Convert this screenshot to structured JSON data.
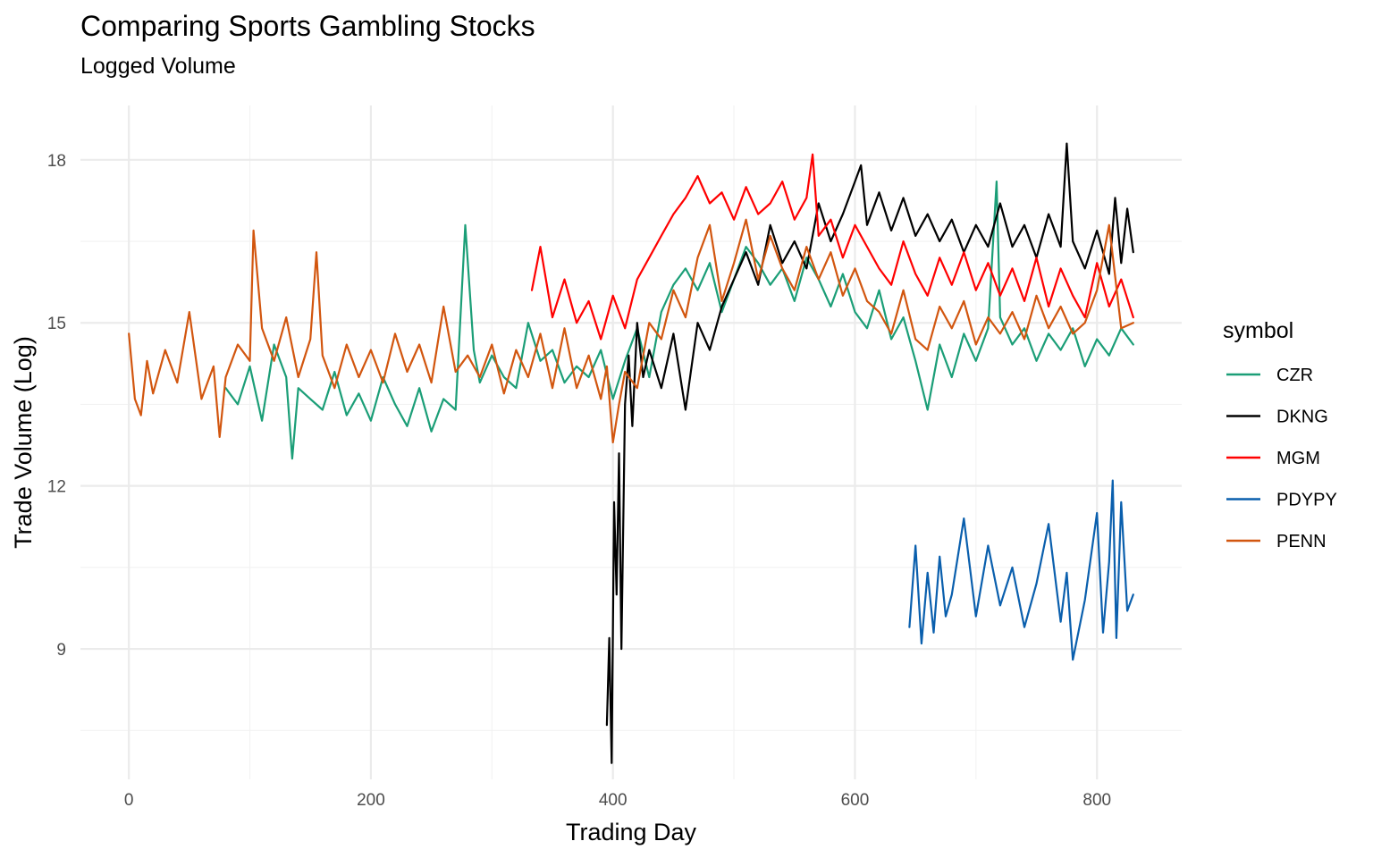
{
  "chart_data": {
    "type": "line",
    "title": "Comparing Sports Gambling Stocks",
    "subtitle": "Logged Volume",
    "xlabel": "Trading Day",
    "ylabel": "Trade Volume (Log)",
    "xlim": [
      -40,
      870
    ],
    "ylim": [
      6.6,
      19.0
    ],
    "x_ticks": [
      0,
      200,
      400,
      600,
      800
    ],
    "y_ticks": [
      9,
      12,
      15,
      18
    ],
    "grid": true,
    "legend_title": "symbol",
    "legend_position": "right",
    "series": [
      {
        "name": "CZR",
        "color": "#1b9e77",
        "x": [
          80,
          90,
          100,
          110,
          120,
          130,
          135,
          140,
          150,
          160,
          170,
          180,
          190,
          200,
          210,
          220,
          230,
          240,
          250,
          260,
          270,
          278,
          285,
          290,
          300,
          310,
          320,
          330,
          340,
          350,
          360,
          370,
          380,
          390,
          400,
          410,
          420,
          430,
          440,
          450,
          460,
          470,
          480,
          490,
          500,
          510,
          520,
          530,
          540,
          550,
          560,
          570,
          580,
          590,
          600,
          610,
          620,
          630,
          640,
          650,
          660,
          670,
          680,
          690,
          700,
          710,
          717,
          720,
          730,
          740,
          750,
          760,
          770,
          780,
          790,
          800,
          810,
          820,
          830
        ],
        "y": [
          13.8,
          13.5,
          14.2,
          13.2,
          14.6,
          14.0,
          12.5,
          13.8,
          13.6,
          13.4,
          14.1,
          13.3,
          13.7,
          13.2,
          14.0,
          13.5,
          13.1,
          13.8,
          13.0,
          13.6,
          13.4,
          16.8,
          14.5,
          13.9,
          14.4,
          14.0,
          13.8,
          15.0,
          14.3,
          14.5,
          13.9,
          14.2,
          14.0,
          14.5,
          13.6,
          14.3,
          14.9,
          14.0,
          15.2,
          15.7,
          16.0,
          15.6,
          16.1,
          15.2,
          15.8,
          16.4,
          16.1,
          15.7,
          16.0,
          15.4,
          16.2,
          15.8,
          15.3,
          15.9,
          15.2,
          14.9,
          15.6,
          14.7,
          15.1,
          14.3,
          13.4,
          14.6,
          14.0,
          14.8,
          14.3,
          14.9,
          17.6,
          15.1,
          14.6,
          14.9,
          14.3,
          14.8,
          14.5,
          14.9,
          14.2,
          14.7,
          14.4,
          14.9,
          14.6
        ]
      },
      {
        "name": "DKNG",
        "color": "#000000",
        "x": [
          395,
          397,
          399,
          401,
          403,
          405,
          407,
          410,
          413,
          416,
          420,
          425,
          430,
          440,
          450,
          460,
          470,
          480,
          490,
          500,
          510,
          520,
          530,
          540,
          550,
          560,
          570,
          580,
          590,
          600,
          605,
          610,
          620,
          630,
          640,
          650,
          660,
          670,
          680,
          690,
          700,
          710,
          720,
          730,
          740,
          750,
          760,
          770,
          775,
          780,
          790,
          800,
          810,
          815,
          820,
          825,
          830
        ],
        "y": [
          7.6,
          9.2,
          6.9,
          11.7,
          10.0,
          12.6,
          9.0,
          13.5,
          14.4,
          13.1,
          15.0,
          14.0,
          14.5,
          13.8,
          14.8,
          13.4,
          15.0,
          14.5,
          15.3,
          15.8,
          16.3,
          15.7,
          16.8,
          16.1,
          16.5,
          16.0,
          17.2,
          16.5,
          17.0,
          17.6,
          17.9,
          16.8,
          17.4,
          16.7,
          17.3,
          16.6,
          17.0,
          16.5,
          16.9,
          16.3,
          16.8,
          16.4,
          17.2,
          16.4,
          16.8,
          16.2,
          17.0,
          16.4,
          18.3,
          16.5,
          16.0,
          16.7,
          15.9,
          17.3,
          16.1,
          17.1,
          16.3
        ]
      },
      {
        "name": "MGM",
        "color": "#ff0000",
        "x": [
          333,
          340,
          350,
          360,
          370,
          380,
          390,
          400,
          410,
          420,
          430,
          440,
          450,
          460,
          470,
          480,
          490,
          500,
          510,
          520,
          530,
          540,
          550,
          560,
          565,
          570,
          580,
          590,
          600,
          610,
          620,
          630,
          640,
          650,
          660,
          670,
          680,
          690,
          700,
          710,
          720,
          730,
          740,
          750,
          760,
          770,
          780,
          790,
          800,
          810,
          820,
          830
        ],
        "y": [
          15.6,
          16.4,
          15.1,
          15.8,
          15.0,
          15.4,
          14.7,
          15.5,
          14.9,
          15.8,
          16.2,
          16.6,
          17.0,
          17.3,
          17.7,
          17.2,
          17.4,
          16.9,
          17.5,
          17.0,
          17.2,
          17.6,
          16.9,
          17.3,
          18.1,
          16.6,
          16.9,
          16.2,
          16.8,
          16.4,
          16.0,
          15.7,
          16.5,
          15.9,
          15.5,
          16.2,
          15.7,
          16.3,
          15.6,
          16.1,
          15.5,
          16.0,
          15.4,
          16.2,
          15.3,
          16.0,
          15.5,
          15.1,
          16.1,
          15.3,
          15.8,
          15.1
        ]
      },
      {
        "name": "PDYPY",
        "color": "#0a5fad",
        "x": [
          645,
          650,
          655,
          660,
          665,
          670,
          675,
          680,
          690,
          700,
          710,
          720,
          730,
          740,
          750,
          760,
          770,
          775,
          780,
          790,
          800,
          805,
          810,
          813,
          816,
          820,
          825,
          830
        ],
        "y": [
          9.4,
          10.9,
          9.1,
          10.4,
          9.3,
          10.7,
          9.6,
          10.0,
          11.4,
          9.6,
          10.9,
          9.8,
          10.5,
          9.4,
          10.2,
          11.3,
          9.5,
          10.4,
          8.8,
          9.9,
          11.5,
          9.3,
          10.6,
          12.1,
          9.2,
          11.7,
          9.7,
          10.0
        ]
      },
      {
        "name": "PENN",
        "color": "#d2560f",
        "x": [
          0,
          5,
          10,
          15,
          20,
          30,
          40,
          50,
          60,
          70,
          75,
          80,
          90,
          100,
          103,
          110,
          120,
          130,
          140,
          150,
          155,
          160,
          170,
          180,
          190,
          200,
          210,
          220,
          230,
          240,
          250,
          260,
          270,
          280,
          290,
          300,
          310,
          320,
          330,
          340,
          350,
          360,
          370,
          380,
          390,
          395,
          400,
          405,
          410,
          420,
          430,
          440,
          450,
          460,
          470,
          480,
          490,
          500,
          510,
          520,
          530,
          540,
          550,
          560,
          570,
          580,
          590,
          600,
          610,
          620,
          630,
          640,
          650,
          660,
          670,
          680,
          690,
          700,
          710,
          720,
          730,
          740,
          750,
          760,
          770,
          780,
          790,
          800,
          810,
          820,
          830
        ],
        "y": [
          14.8,
          13.6,
          13.3,
          14.3,
          13.7,
          14.5,
          13.9,
          15.2,
          13.6,
          14.2,
          12.9,
          14.0,
          14.6,
          14.3,
          16.7,
          14.9,
          14.3,
          15.1,
          14.0,
          14.7,
          16.3,
          14.4,
          13.8,
          14.6,
          14.0,
          14.5,
          13.9,
          14.8,
          14.1,
          14.6,
          13.9,
          15.3,
          14.1,
          14.4,
          14.0,
          14.6,
          13.7,
          14.5,
          14.0,
          14.8,
          13.8,
          14.9,
          13.8,
          14.4,
          13.6,
          14.2,
          12.8,
          13.5,
          14.1,
          13.8,
          15.0,
          14.7,
          15.6,
          15.1,
          16.2,
          16.8,
          15.4,
          16.1,
          16.9,
          15.8,
          16.6,
          16.0,
          15.6,
          16.4,
          15.8,
          16.3,
          15.5,
          16.0,
          15.4,
          15.2,
          14.8,
          15.6,
          14.7,
          14.5,
          15.3,
          14.9,
          15.4,
          14.6,
          15.1,
          14.8,
          15.2,
          14.7,
          15.5,
          14.9,
          15.3,
          14.8,
          15.0,
          15.6,
          16.8,
          14.9,
          15.0
        ]
      }
    ]
  }
}
